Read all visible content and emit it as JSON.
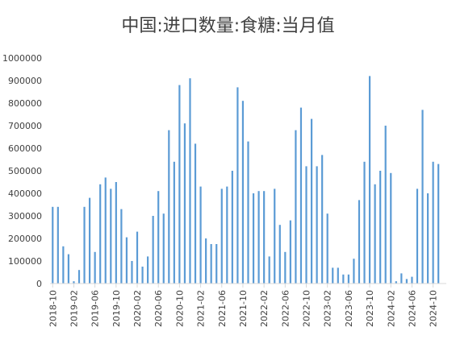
{
  "chart_data": {
    "type": "bar",
    "title": "中国:进口数量:食糖:当月值",
    "xlabel": "",
    "ylabel": "",
    "ylim": [
      0,
      1000000
    ],
    "y_ticks": [
      0,
      100000,
      200000,
      300000,
      400000,
      500000,
      600000,
      700000,
      800000,
      900000,
      1000000
    ],
    "y_tick_labels": [
      "0",
      "100000",
      "200000",
      "300000",
      "400000",
      "500000",
      "600000",
      "700000",
      "800000",
      "900000",
      "1000000"
    ],
    "x_tick_labels": [
      "2018-10",
      "2019-02",
      "2019-06",
      "2019-10",
      "2020-02",
      "2020-06",
      "2020-10",
      "2021-02",
      "2021-06",
      "2021-10",
      "2022-02",
      "2022-06",
      "2022-10",
      "2023-02",
      "2023-06",
      "2023-10",
      "2024-02",
      "2024-06",
      "2024-10"
    ],
    "grid": false,
    "legend": "none",
    "bar_color": "#5b9bd5",
    "categories": [
      "2018-10",
      "2018-11",
      "2018-12",
      "2019-01",
      "2019-02",
      "2019-03",
      "2019-04",
      "2019-05",
      "2019-06",
      "2019-07",
      "2019-08",
      "2019-09",
      "2019-10",
      "2019-11",
      "2019-12",
      "2020-01",
      "2020-02",
      "2020-03",
      "2020-04",
      "2020-05",
      "2020-06",
      "2020-07",
      "2020-08",
      "2020-09",
      "2020-10",
      "2020-11",
      "2020-12",
      "2021-01",
      "2021-02",
      "2021-03",
      "2021-04",
      "2021-05",
      "2021-06",
      "2021-07",
      "2021-08",
      "2021-09",
      "2021-10",
      "2021-11",
      "2021-12",
      "2022-01",
      "2022-02",
      "2022-03",
      "2022-04",
      "2022-05",
      "2022-06",
      "2022-07",
      "2022-08",
      "2022-09",
      "2022-10",
      "2022-11",
      "2022-12",
      "2023-01",
      "2023-02",
      "2023-03",
      "2023-04",
      "2023-05",
      "2023-06",
      "2023-07",
      "2023-08",
      "2023-09",
      "2023-10",
      "2023-11",
      "2023-12",
      "2024-01",
      "2024-02",
      "2024-03",
      "2024-04",
      "2024-05",
      "2024-06",
      "2024-07",
      "2024-08",
      "2024-09",
      "2024-10",
      "2024-11",
      "2024-12"
    ],
    "values": [
      340000,
      340000,
      165000,
      130000,
      10000,
      60000,
      340000,
      380000,
      140000,
      440000,
      470000,
      420000,
      450000,
      330000,
      205000,
      100000,
      230000,
      75000,
      120000,
      300000,
      410000,
      310000,
      680000,
      540000,
      880000,
      710000,
      910000,
      620000,
      430000,
      200000,
      175000,
      175000,
      420000,
      430000,
      500000,
      870000,
      810000,
      630000,
      400000,
      410000,
      410000,
      120000,
      420000,
      260000,
      140000,
      280000,
      680000,
      780000,
      520000,
      730000,
      520000,
      570000,
      310000,
      70000,
      70000,
      40000,
      40000,
      110000,
      370000,
      540000,
      920000,
      440000,
      500000,
      700000,
      490000,
      10000,
      45000,
      20000,
      30000,
      420000,
      770000,
      400000,
      540000,
      530000,
      0
    ]
  }
}
